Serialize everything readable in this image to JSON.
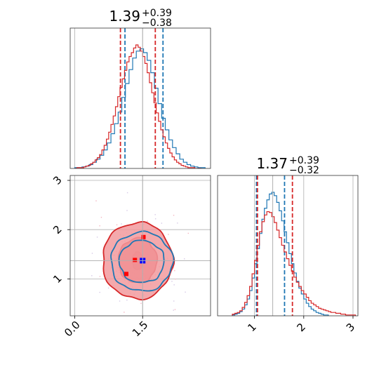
{
  "chart_data": [
    {
      "panel": "marginal-param-1",
      "type": "histogram",
      "title_parts": {
        "value": "1.39",
        "upper": "+0.39",
        "lower": "−0.38"
      },
      "x_range": [
        -0.1,
        3.0
      ],
      "truth": 1.5,
      "series": [
        {
          "color": "#1f77b4",
          "bin_start": 0.0,
          "bin_width": 0.08,
          "counts": [
            1,
            1,
            2,
            3,
            5,
            8,
            12,
            17,
            24,
            33,
            45,
            58,
            73,
            92,
            110,
            128,
            143,
            152,
            155,
            150,
            140,
            124,
            104,
            84,
            65,
            50,
            37,
            27,
            19,
            12,
            8,
            5,
            3,
            2,
            1,
            1
          ],
          "quantiles": [
            1.11,
            1.95
          ]
        },
        {
          "color": "#d62728",
          "bin_start": 0.0,
          "bin_width": 0.05,
          "counts": [
            0,
            1,
            1,
            1,
            2,
            3,
            4,
            6,
            8,
            11,
            14,
            18,
            24,
            30,
            38,
            47,
            57,
            68,
            80,
            93,
            105,
            116,
            127,
            138,
            145,
            150,
            156,
            160,
            157,
            152,
            145,
            136,
            124,
            111,
            98,
            85,
            72,
            61,
            50,
            41,
            33,
            26,
            20,
            15,
            11,
            8,
            6,
            4,
            3,
            2,
            1,
            1,
            1,
            0,
            0,
            0
          ],
          "quantiles": [
            1.01,
            1.78
          ]
        }
      ]
    },
    {
      "panel": "2d-density",
      "type": "contour",
      "x_ticks": [
        "0.0",
        "1.5"
      ],
      "y_ticks": [
        "1",
        "2",
        "3"
      ],
      "x_range": [
        -0.1,
        3.0
      ],
      "y_range": [
        0.25,
        3.1
      ],
      "truth": [
        1.5,
        1.37
      ],
      "series": [
        {
          "color": "#d62728",
          "center": [
            1.39,
            1.37
          ],
          "levels_sigma": [
            0.65,
            0.98,
            1.2
          ]
        },
        {
          "color": "#1f77b4",
          "center": [
            1.48,
            1.35
          ],
          "levels_sigma": [
            0.6,
            0.9
          ]
        }
      ]
    },
    {
      "panel": "marginal-param-2",
      "type": "histogram",
      "title_parts": {
        "value": "1.37",
        "upper": "+0.39",
        "lower": "−0.32"
      },
      "x_ticks": [
        "1",
        "2",
        "3"
      ],
      "x_range": [
        0.25,
        3.1
      ],
      "truth": 1.37,
      "series": [
        {
          "color": "#1f77b4",
          "bin_start": 0.55,
          "bin_width": 0.05,
          "counts": [
            1,
            2,
            3,
            5,
            8,
            13,
            20,
            30,
            45,
            62,
            80,
            98,
            115,
            128,
            138,
            145,
            147,
            143,
            135,
            125,
            113,
            100,
            87,
            74,
            62,
            51,
            41,
            33,
            26,
            20,
            15,
            11,
            8,
            6,
            4,
            3,
            2,
            1,
            1
          ],
          "quantiles": [
            1.04,
            1.61
          ]
        },
        {
          "color": "#d62728",
          "bin_start": 0.55,
          "bin_width": 0.05,
          "counts": [
            2,
            3,
            4,
            6,
            10,
            16,
            24,
            35,
            50,
            66,
            84,
            100,
            112,
            120,
            124,
            123,
            118,
            111,
            102,
            93,
            84,
            76,
            68,
            60,
            53,
            46,
            40,
            35,
            30,
            26,
            22,
            18,
            15,
            13,
            11,
            9,
            8,
            7,
            6,
            5,
            4,
            4,
            3,
            3,
            2,
            2,
            1,
            1,
            1,
            1
          ],
          "quantiles": [
            1.06,
            1.77
          ]
        }
      ]
    }
  ]
}
